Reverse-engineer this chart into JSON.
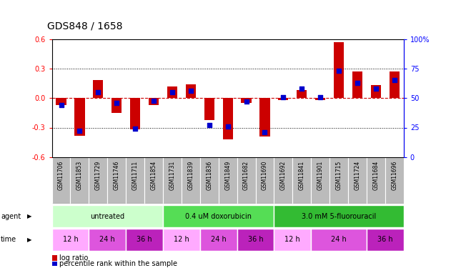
{
  "title": "GDS848 / 1658",
  "samples": [
    "GSM11706",
    "GSM11853",
    "GSM11729",
    "GSM11746",
    "GSM11711",
    "GSM11854",
    "GSM11731",
    "GSM11839",
    "GSM11836",
    "GSM11849",
    "GSM11682",
    "GSM11690",
    "GSM11692",
    "GSM11841",
    "GSM11901",
    "GSM11715",
    "GSM11724",
    "GSM11684",
    "GSM11696"
  ],
  "log_ratio": [
    -0.07,
    -0.38,
    0.18,
    -0.15,
    -0.32,
    -0.07,
    0.12,
    0.14,
    -0.22,
    -0.42,
    -0.05,
    -0.39,
    -0.02,
    0.08,
    -0.02,
    0.57,
    0.27,
    0.13,
    0.27
  ],
  "pct_rank": [
    44,
    22,
    55,
    46,
    24,
    48,
    55,
    56,
    27,
    26,
    47,
    21,
    51,
    58,
    51,
    73,
    63,
    58,
    65
  ],
  "ylim_left": [
    -0.6,
    0.6
  ],
  "ylim_right": [
    0,
    100
  ],
  "yticks_left": [
    -0.6,
    -0.3,
    0.0,
    0.3,
    0.6
  ],
  "yticks_right": [
    0,
    25,
    50,
    75,
    100
  ],
  "bar_color": "#cc0000",
  "dot_color": "#0000cc",
  "zero_line_color": "#cc0000",
  "agent_labels": [
    "untreated",
    "0.4 uM doxorubicin",
    "3.0 mM 5-fluorouracil"
  ],
  "agent_starts": [
    0,
    6,
    12
  ],
  "agent_ends": [
    6,
    12,
    19
  ],
  "agent_colors": [
    "#ccffcc",
    "#55dd55",
    "#33bb33"
  ],
  "time_labels": [
    "12 h",
    "24 h",
    "36 h",
    "12 h",
    "24 h",
    "36 h",
    "12 h",
    "24 h",
    "36 h"
  ],
  "time_starts": [
    0,
    2,
    4,
    6,
    8,
    10,
    12,
    14,
    17
  ],
  "time_ends": [
    2,
    4,
    6,
    8,
    10,
    12,
    14,
    17,
    19
  ],
  "time_colors": [
    "#ffaaff",
    "#dd55dd",
    "#bb22bb",
    "#ffaaff",
    "#dd55dd",
    "#bb22bb",
    "#ffaaff",
    "#dd55dd",
    "#bb22bb"
  ],
  "xtick_bg": "#bbbbbb",
  "legend_log_ratio": "log ratio",
  "legend_pct": "percentile rank within the sample"
}
